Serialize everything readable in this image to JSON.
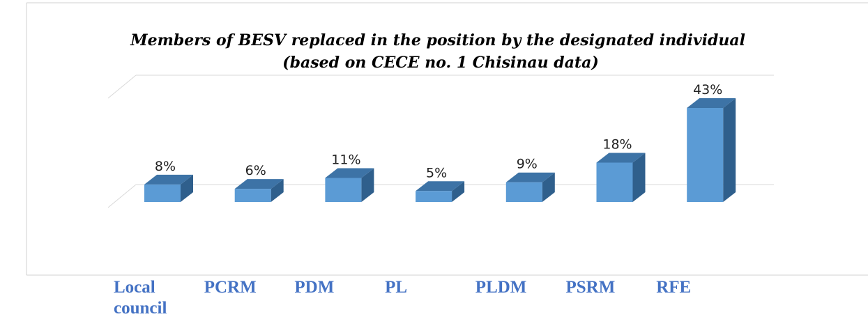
{
  "chart_data": {
    "type": "bar3d",
    "title": "Members of  BESV replaced in the position by the designated individual (based on CECE no. 1 Chisinau data)",
    "categories": [
      "Local council",
      "PCRM",
      "PDM",
      "PL",
      "PLDM",
      "PSRM",
      "RFE"
    ],
    "values": [
      8,
      6,
      11,
      5,
      9,
      18,
      43
    ],
    "value_labels": [
      "8%",
      "6%",
      "11%",
      "5%",
      "9%",
      "18%",
      "43%"
    ],
    "color": "#5b9bd5",
    "ylim": [
      0,
      50
    ]
  }
}
